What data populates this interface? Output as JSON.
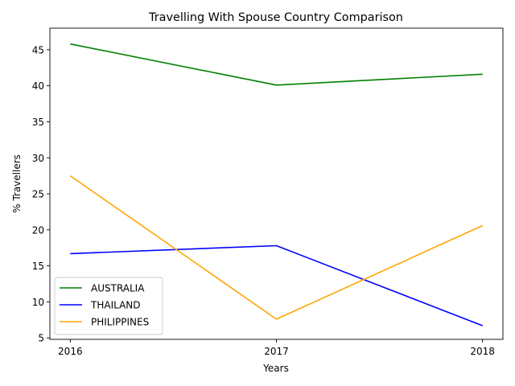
{
  "chart_data": {
    "type": "line",
    "title": "Travelling With Spouse Country Comparison",
    "xlabel": "Years",
    "ylabel": "% Travellers",
    "categories": [
      "2016",
      "2017",
      "2018"
    ],
    "yticks": [
      5,
      10,
      15,
      20,
      25,
      30,
      35,
      40,
      45
    ],
    "ylim": [
      4.8,
      48.0
    ],
    "grid": false,
    "legend_position": "lower-left",
    "series": [
      {
        "name": "AUSTRALIA",
        "color": "#008000",
        "values": [
          45.8,
          40.1,
          41.6
        ]
      },
      {
        "name": "THAILAND",
        "color": "#0000ff",
        "values": [
          16.7,
          17.8,
          6.7
        ]
      },
      {
        "name": "PHILIPPINES",
        "color": "#ffa500",
        "values": [
          27.5,
          7.6,
          20.6
        ]
      }
    ]
  }
}
